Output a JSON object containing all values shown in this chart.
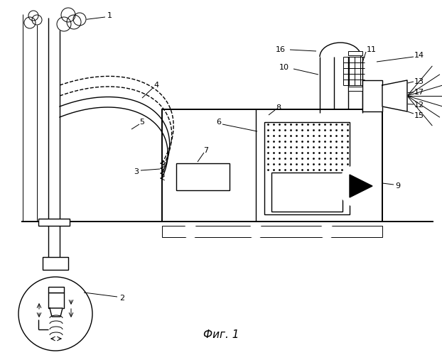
{
  "title": "Фиг. 1",
  "background": "#ffffff",
  "line_color": "#000000",
  "lw": 1.0,
  "lw_thin": 0.7,
  "lw_thick": 1.4
}
